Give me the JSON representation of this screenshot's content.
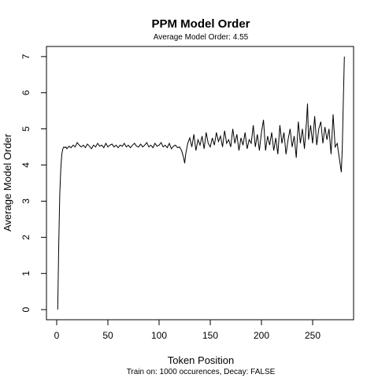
{
  "chart_data": {
    "type": "line",
    "title": "PPM Model Order",
    "subtitle": "Average Model Order: 4.55",
    "xlabel": "Token Position",
    "ylabel": "Average Model Order",
    "caption": "Train on: 1000 occurences, Decay: FALSE",
    "xlim": [
      -10,
      290
    ],
    "ylim": [
      -0.28,
      7.28
    ],
    "x_ticks": [
      0,
      50,
      100,
      150,
      200,
      250
    ],
    "y_ticks": [
      0,
      1,
      2,
      3,
      4,
      5,
      6,
      7
    ],
    "grid": false,
    "line_color": "#000000",
    "series": [
      {
        "x": [
          1,
          2,
          3,
          4,
          5,
          6,
          7,
          8,
          9,
          10,
          12,
          14,
          16,
          18,
          20,
          22,
          24,
          26,
          28,
          30,
          32,
          34,
          36,
          38,
          40,
          42,
          44,
          46,
          48,
          50,
          52,
          54,
          56,
          58,
          60,
          62,
          64,
          66,
          68,
          70,
          72,
          74,
          76,
          78,
          80,
          82,
          84,
          86,
          88,
          90,
          92,
          94,
          96,
          98,
          100,
          102,
          104,
          106,
          108,
          110,
          112,
          114,
          116,
          118,
          120,
          122,
          124,
          125,
          126,
          128,
          130,
          132,
          134,
          136,
          138,
          140,
          142,
          144,
          146,
          148,
          150,
          152,
          154,
          156,
          158,
          160,
          162,
          164,
          166,
          168,
          170,
          172,
          174,
          176,
          178,
          180,
          182,
          184,
          186,
          188,
          190,
          192,
          194,
          196,
          198,
          200,
          202,
          204,
          206,
          208,
          210,
          212,
          214,
          216,
          218,
          220,
          222,
          224,
          226,
          228,
          230,
          232,
          234,
          236,
          238,
          240,
          242,
          244,
          245,
          246,
          248,
          250,
          252,
          254,
          256,
          258,
          260,
          262,
          264,
          266,
          268,
          270,
          272,
          274,
          276,
          278,
          279,
          280,
          281
        ],
        "y": [
          0.0,
          1.8,
          3.2,
          3.9,
          4.3,
          4.45,
          4.5,
          4.48,
          4.5,
          4.45,
          4.52,
          4.48,
          4.55,
          4.5,
          4.62,
          4.55,
          4.5,
          4.55,
          4.48,
          4.58,
          4.52,
          4.45,
          4.55,
          4.5,
          4.6,
          4.52,
          4.55,
          4.48,
          4.6,
          4.5,
          4.55,
          4.58,
          4.5,
          4.55,
          4.48,
          4.55,
          4.52,
          4.6,
          4.5,
          4.55,
          4.48,
          4.55,
          4.6,
          4.52,
          4.5,
          4.58,
          4.5,
          4.55,
          4.62,
          4.5,
          4.55,
          4.48,
          4.6,
          4.52,
          4.55,
          4.62,
          4.5,
          4.55,
          4.48,
          4.6,
          4.45,
          4.52,
          4.55,
          4.48,
          4.5,
          4.4,
          4.2,
          4.05,
          4.3,
          4.6,
          4.75,
          4.5,
          4.85,
          4.4,
          4.7,
          4.55,
          4.8,
          4.45,
          4.9,
          4.6,
          4.5,
          4.75,
          4.55,
          4.9,
          4.65,
          4.8,
          4.5,
          4.95,
          4.6,
          4.7,
          4.5,
          5.0,
          4.6,
          4.85,
          4.4,
          4.75,
          4.55,
          4.9,
          4.45,
          4.7,
          4.6,
          5.1,
          4.5,
          4.85,
          4.4,
          4.9,
          5.25,
          4.4,
          4.8,
          4.55,
          4.9,
          4.4,
          4.75,
          4.3,
          5.1,
          4.6,
          4.9,
          4.3,
          4.7,
          5.0,
          4.5,
          4.8,
          4.2,
          5.2,
          4.6,
          5.0,
          4.45,
          5.2,
          5.7,
          4.7,
          5.1,
          4.6,
          5.35,
          4.55,
          5.0,
          5.2,
          4.6,
          5.05,
          4.7,
          5.0,
          4.3,
          5.4,
          4.5,
          4.6,
          4.2,
          3.8,
          4.5,
          5.8,
          7.0
        ]
      }
    ]
  }
}
